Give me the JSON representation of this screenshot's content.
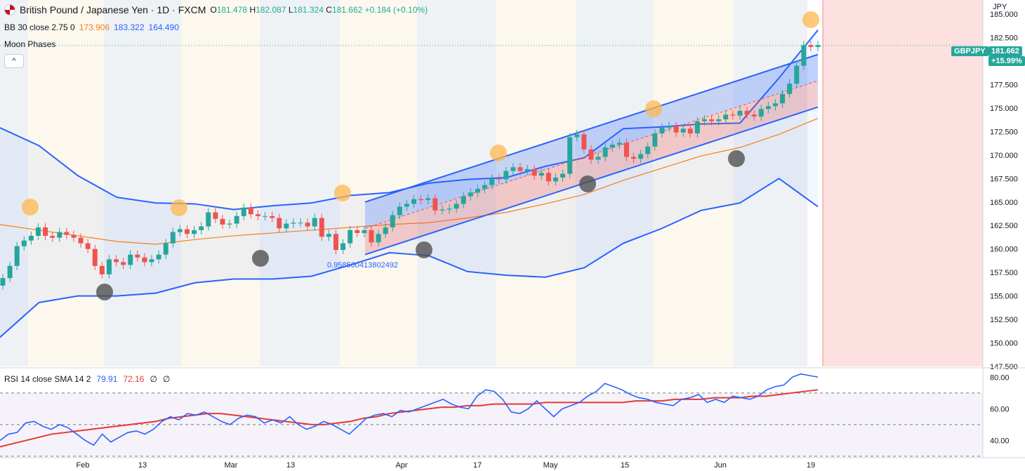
{
  "header": {
    "symbol_title": "British Pound / Japanese Yen · 1D · FXCM",
    "ohlc": [
      {
        "k": "O",
        "v": "181.478"
      },
      {
        "k": "H",
        "v": "182.087"
      },
      {
        "k": "L",
        "v": "181.324"
      },
      {
        "k": "C",
        "v": "181.662"
      }
    ],
    "change": "+0.184 (+0.10%)",
    "bb_label": "BB 30 close 2.75 0",
    "bb_basis": "173.906",
    "bb_upper": "183.322",
    "bb_lower": "164.490",
    "moon_label": "Moon Phases",
    "collapse_glyph": "^"
  },
  "price_axis": {
    "currency": "JPY",
    "ticks": [
      "185.000",
      "182.500",
      "180.000",
      "177.500",
      "175.000",
      "172.500",
      "170.000",
      "167.500",
      "165.000",
      "162.500",
      "160.000",
      "157.500",
      "155.000",
      "152.500",
      "150.000",
      "147.500"
    ],
    "symbol_tag": "GBPJPY",
    "last_price": "181.662",
    "last_change_pct": "+15.99%"
  },
  "time_axis": {
    "labels": [
      "Feb",
      "13",
      "Mar",
      "13",
      "Apr",
      "17",
      "May",
      "15",
      "Jun",
      "19"
    ]
  },
  "channel_label": "0.9585604138024​92",
  "rsi": {
    "label": "RSI 14 close SMA 14 2",
    "rsi_value": "79.91",
    "sma_value": "72.16",
    "extra1": "∅",
    "extra2": "∅",
    "ticks": [
      "80.00",
      "60.00",
      "40.00"
    ]
  },
  "colors": {
    "up": "#26a69a",
    "down": "#ef5350",
    "bb_band": "#2962ff",
    "bb_basis": "#f57f17",
    "channel_upper_fill": "#2962ff",
    "channel_lower_fill": "#ef5350",
    "full_moon": "#ffb74d",
    "new_moon": "#555555"
  },
  "chart_data": {
    "type": "candlestick",
    "title": "British Pound / Japanese Yen · 1D · FXCM",
    "ylabel": "JPY",
    "ylim": [
      147.5,
      186.5
    ],
    "x_labels": [
      "Feb",
      "13",
      "Mar",
      "13",
      "Apr",
      "17",
      "May",
      "15",
      "Jun",
      "19"
    ],
    "closes": [
      156.9,
      158.2,
      160.3,
      160.9,
      161.4,
      162.3,
      161.4,
      161.2,
      161.8,
      161.5,
      161.2,
      160.6,
      160.0,
      158.2,
      157.3,
      158.9,
      158.6,
      158.3,
      159.4,
      159.1,
      158.6,
      158.9,
      159.4,
      160.6,
      161.8,
      162.1,
      161.6,
      162.0,
      162.4,
      163.9,
      163.2,
      162.6,
      162.7,
      163.5,
      164.4,
      163.7,
      163.5,
      163.5,
      163.3,
      162.2,
      162.7,
      162.8,
      162.8,
      162.4,
      163.3,
      161.3,
      161.6,
      159.9,
      160.6,
      162.0,
      161.7,
      162.0,
      160.7,
      161.6,
      162.3,
      163.6,
      164.5,
      164.8,
      165.3,
      165.2,
      165.4,
      164.1,
      164.2,
      164.3,
      164.8,
      165.6,
      166.0,
      166.4,
      166.8,
      167.5,
      167.4,
      168.3,
      168.7,
      168.3,
      168.5,
      167.8,
      168.1,
      167.2,
      167.6,
      168.0,
      171.9,
      172.2,
      170.6,
      169.5,
      169.8,
      170.8,
      171.1,
      171.3,
      169.8,
      169.6,
      170.1,
      170.9,
      172.3,
      172.9,
      173.1,
      172.4,
      172.8,
      172.3,
      173.6,
      173.8,
      173.6,
      173.8,
      174.3,
      174.2,
      174.7,
      174.3,
      174.1,
      174.9,
      175.2,
      175.5,
      176.5,
      177.6,
      179.5,
      181.7,
      181.5,
      181.7
    ],
    "bb_upper": [
      172.9,
      171.0,
      167.8,
      165.5,
      164.9,
      164.8,
      164.2,
      164.6,
      164.9,
      165.7,
      166.0,
      167.0,
      167.4,
      167.6,
      168.8,
      169.7,
      172.8,
      173.0,
      173.3,
      173.4,
      178.2,
      183.3
    ],
    "bb_basis": [
      162.6,
      162.0,
      161.4,
      160.8,
      160.5,
      161.0,
      161.4,
      161.7,
      162.0,
      162.3,
      162.6,
      162.8,
      163.3,
      163.9,
      164.8,
      165.8,
      167.3,
      168.6,
      169.9,
      170.8,
      172.2,
      173.9
    ],
    "bb_lower": [
      150.6,
      154.3,
      155.0,
      155.0,
      155.3,
      156.4,
      156.8,
      156.8,
      157.1,
      158.3,
      159.6,
      159.3,
      157.6,
      157.2,
      157.0,
      158.0,
      160.6,
      162.2,
      164.1,
      164.9,
      167.5,
      164.5
    ],
    "moon_phases": [
      {
        "date_index": 0,
        "type": "full"
      },
      {
        "date_index": 8,
        "type": "new"
      },
      {
        "date_index": 15,
        "type": "full"
      },
      {
        "date_index": 22,
        "type": "new"
      },
      {
        "date_index": 30,
        "type": "full"
      },
      {
        "date_index": 37,
        "type": "new"
      },
      {
        "date_index": 45,
        "type": "full"
      },
      {
        "date_index": 52,
        "type": "new"
      },
      {
        "date_index": 60,
        "type": "full"
      },
      {
        "date_index": 67,
        "type": "new"
      },
      {
        "date_index": 75,
        "type": "full"
      }
    ],
    "rsi_values": [
      40,
      44,
      45,
      51,
      52,
      49,
      47,
      50,
      48,
      44,
      40,
      37,
      44,
      39,
      42,
      45,
      46,
      44,
      47,
      52,
      55,
      53,
      57,
      56,
      58,
      55,
      52,
      50,
      54,
      56,
      55,
      51,
      53,
      51,
      55,
      50,
      47,
      49,
      52,
      50,
      47,
      44,
      49,
      54,
      56,
      57,
      55,
      59,
      58,
      60,
      62,
      64,
      66,
      63,
      61,
      60,
      68,
      72,
      71,
      66,
      58,
      57,
      60,
      65,
      60,
      55,
      60,
      62,
      64,
      68,
      71,
      76,
      74,
      72,
      69,
      67,
      66,
      64,
      63,
      62,
      66,
      67,
      69,
      64,
      66,
      64,
      68,
      67,
      66,
      68,
      72,
      74,
      75,
      80,
      82,
      81,
      80
    ],
    "rsi_sma": [
      36,
      38,
      40,
      42,
      44,
      45,
      46,
      47,
      48,
      49,
      50,
      51,
      52,
      54,
      55,
      56,
      57,
      57,
      56,
      55,
      54,
      53,
      52,
      51,
      50,
      50,
      51,
      52,
      54,
      55,
      57,
      58,
      59,
      60,
      61,
      61,
      62,
      62,
      63,
      63,
      63,
      63,
      64,
      64,
      64,
      64,
      64,
      64,
      64,
      65,
      65,
      65,
      66,
      66,
      66,
      67,
      67,
      67,
      68,
      68,
      69,
      70,
      71,
      72
    ]
  }
}
